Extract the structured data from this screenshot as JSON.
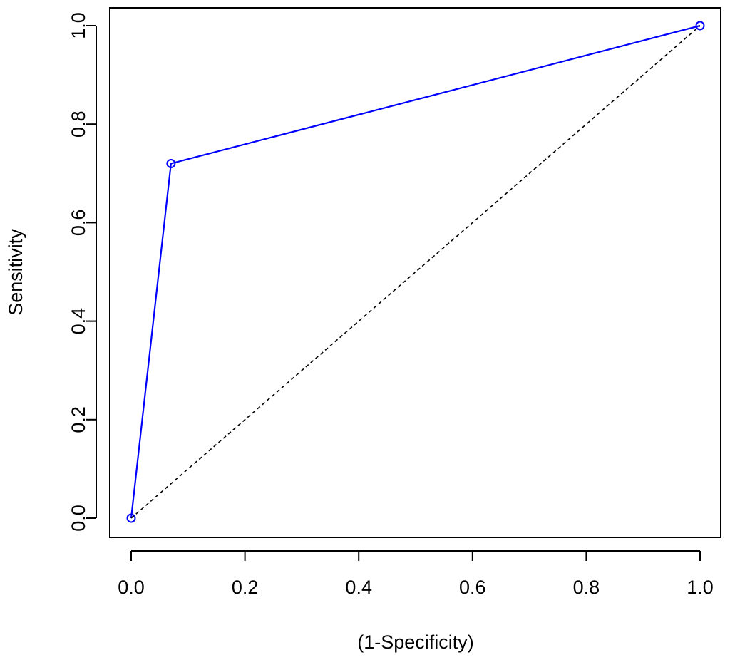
{
  "chart_data": {
    "type": "line",
    "xlabel": "(1-Specificity)",
    "ylabel": "Sensitivity",
    "xlim": [
      0,
      1
    ],
    "ylim": [
      0,
      1
    ],
    "x_ticks": [
      "0.0",
      "0.2",
      "0.4",
      "0.6",
      "0.8",
      "1.0"
    ],
    "y_ticks": [
      "0.0",
      "0.2",
      "0.4",
      "0.6",
      "0.8",
      "1.0"
    ],
    "grid": false,
    "legend": "none",
    "series": [
      {
        "style": "solid line with open circle markers",
        "color": "#0000ff",
        "x": [
          0.0,
          0.07,
          1.0
        ],
        "y": [
          0.0,
          0.72,
          1.0
        ]
      },
      {
        "style": "dashed reference line",
        "color": "#000000",
        "x": [
          0.0,
          1.0
        ],
        "y": [
          0.0,
          1.0
        ]
      }
    ]
  }
}
